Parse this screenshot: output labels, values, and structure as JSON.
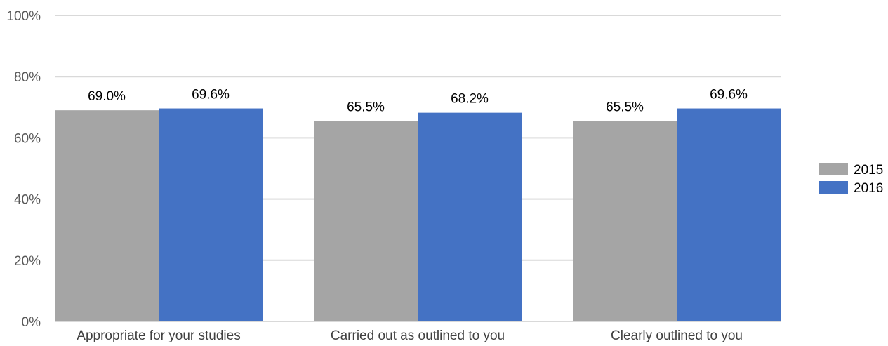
{
  "chart_data": {
    "type": "bar",
    "title": "",
    "xlabel": "",
    "ylabel": "",
    "categories": [
      "Appropriate for your studies",
      "Carried out as outlined to you",
      "Clearly outlined to you"
    ],
    "series": [
      {
        "name": "2015",
        "color": "#a5a5a5",
        "values": [
          69.0,
          65.5,
          65.5
        ],
        "labels": [
          "69.0%",
          "65.5%",
          "65.5%"
        ]
      },
      {
        "name": "2016",
        "color": "#4472c4",
        "values": [
          69.6,
          68.2,
          69.6
        ],
        "labels": [
          "69.6%",
          "68.2%",
          "69.6%"
        ]
      }
    ],
    "ylim": [
      0,
      100
    ],
    "yticks": [
      0,
      20,
      40,
      60,
      80,
      100
    ],
    "ytick_labels": [
      "0%",
      "20%",
      "40%",
      "60%",
      "80%",
      "100%"
    ],
    "grid": true,
    "legend": "right"
  }
}
